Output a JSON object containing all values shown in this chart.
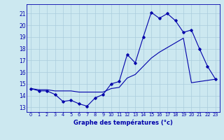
{
  "hours": [
    0,
    1,
    2,
    3,
    4,
    5,
    6,
    7,
    8,
    9,
    10,
    11,
    12,
    13,
    14,
    15,
    16,
    17,
    18,
    19,
    20,
    21,
    22,
    23
  ],
  "temp_actual": [
    14.6,
    14.4,
    14.4,
    14.1,
    13.5,
    13.6,
    13.3,
    13.1,
    13.8,
    14.1,
    15.0,
    15.2,
    17.5,
    16.8,
    19.0,
    21.1,
    20.6,
    21.0,
    20.4,
    19.4,
    19.6,
    18.0,
    16.5,
    15.4
  ],
  "temp_trend": [
    14.6,
    14.5,
    14.5,
    14.4,
    14.4,
    14.4,
    14.3,
    14.3,
    14.3,
    14.3,
    14.6,
    14.7,
    15.5,
    15.8,
    16.5,
    17.2,
    17.7,
    18.1,
    18.5,
    18.9,
    15.1,
    15.2,
    15.3,
    15.4
  ],
  "bg_color": "#cce8f0",
  "line_color": "#0000aa",
  "grid_color": "#aaccdd",
  "xlabel": "Graphe des températures (°c)",
  "yticks": [
    13,
    14,
    15,
    16,
    17,
    18,
    19,
    20,
    21
  ],
  "xlim": [
    -0.5,
    23.5
  ],
  "ylim": [
    12.6,
    21.8
  ]
}
